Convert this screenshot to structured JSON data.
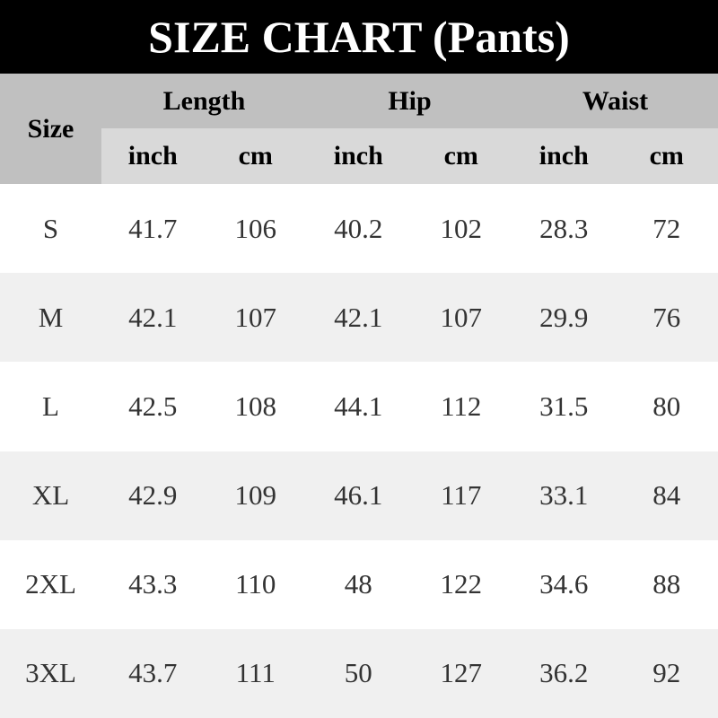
{
  "title": "SIZE CHART (Pants)",
  "header": {
    "size": "Size",
    "groups": [
      "Length",
      "Hip",
      "Waist"
    ],
    "units": [
      "inch",
      "cm",
      "inch",
      "cm",
      "inch",
      "cm"
    ]
  },
  "rows": [
    [
      "S",
      "41.7",
      "106",
      "40.2",
      "102",
      "28.3",
      "72"
    ],
    [
      "M",
      "42.1",
      "107",
      "42.1",
      "107",
      "29.9",
      "76"
    ],
    [
      "L",
      "42.5",
      "108",
      "44.1",
      "112",
      "31.5",
      "80"
    ],
    [
      "XL",
      "42.9",
      "109",
      "46.1",
      "117",
      "33.1",
      "84"
    ],
    [
      "2XL",
      "43.3",
      "110",
      "48",
      "122",
      "34.6",
      "88"
    ],
    [
      "3XL",
      "43.7",
      "111",
      "50",
      "127",
      "36.2",
      "92"
    ]
  ],
  "colors": {
    "title_bg": "#000000",
    "header_bg": "#c0c0c0",
    "subheader_bg": "#d9d9d9",
    "alt_row": "#f0f0f0"
  }
}
